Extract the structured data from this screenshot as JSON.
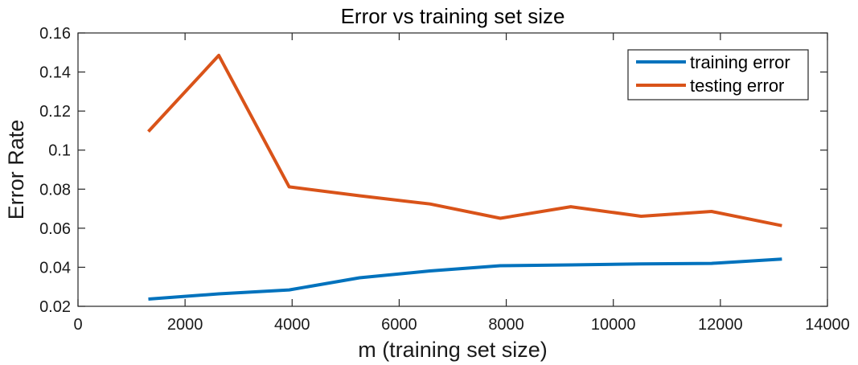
{
  "chart_data": {
    "type": "line",
    "title": "Error vs training set size",
    "xlabel": "m (training set size)",
    "ylabel": "Error Rate",
    "xlim": [
      0,
      14000
    ],
    "ylim": [
      0.02,
      0.16
    ],
    "xticks": [
      0,
      2000,
      4000,
      6000,
      8000,
      10000,
      12000,
      14000
    ],
    "xtick_labels": [
      "0",
      "2000",
      "4000",
      "6000",
      "8000",
      "10000",
      "12000",
      "14000"
    ],
    "yticks": [
      0.02,
      0.04,
      0.06,
      0.08,
      0.1,
      0.12,
      0.14,
      0.16
    ],
    "ytick_labels": [
      "0.02",
      "0.04",
      "0.06",
      "0.08",
      "0.1",
      "0.12",
      "0.14",
      "0.16"
    ],
    "grid": false,
    "legend_position": "top-right",
    "x": [
      1315,
      2630,
      3945,
      5260,
      6575,
      7890,
      9205,
      10520,
      11835,
      13150
    ],
    "series": [
      {
        "name": "training error",
        "color": "#0072bd",
        "values": [
          0.0237,
          0.0264,
          0.0284,
          0.0346,
          0.0381,
          0.0408,
          0.0412,
          0.0417,
          0.042,
          0.0442
        ]
      },
      {
        "name": "testing error",
        "color": "#d95319",
        "values": [
          0.1095,
          0.1485,
          0.0812,
          0.0766,
          0.0724,
          0.0651,
          0.071,
          0.0661,
          0.0686,
          0.0613
        ]
      }
    ]
  }
}
